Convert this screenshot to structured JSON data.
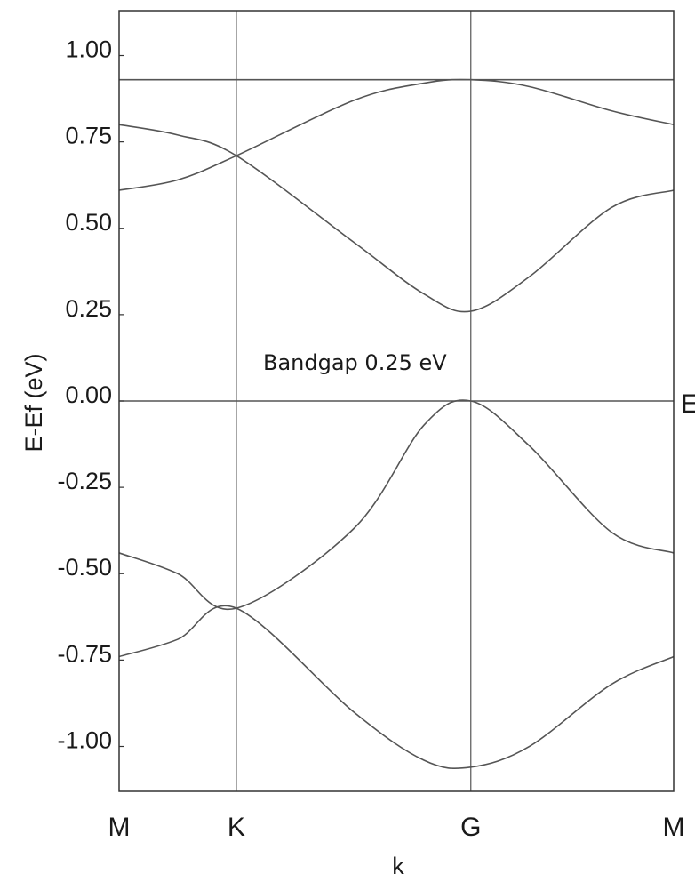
{
  "chart_data": {
    "type": "line",
    "title": "",
    "xlabel": "k",
    "ylabel": "E-Ef (eV)",
    "ylim": [
      -1.13,
      1.13
    ],
    "yticks": [
      {
        "value": 1.0,
        "label": "1.00"
      },
      {
        "value": 0.75,
        "label": "0.75"
      },
      {
        "value": 0.5,
        "label": "0.50"
      },
      {
        "value": 0.25,
        "label": "0.25"
      },
      {
        "value": 0.0,
        "label": "0.00"
      },
      {
        "value": -0.25,
        "label": "-0.25"
      },
      {
        "value": -0.5,
        "label": "-0.50"
      },
      {
        "value": -0.75,
        "label": "-0.75"
      },
      {
        "value": -1.0,
        "label": "-1.00"
      }
    ],
    "k_points": [
      {
        "label": "M",
        "x": 0.0
      },
      {
        "label": "K",
        "x": 1.0
      },
      {
        "label": "G",
        "x": 3.0
      },
      {
        "label": "M",
        "x": 4.73
      }
    ],
    "xlim": [
      0.0,
      4.73
    ],
    "fermi_label": "E",
    "annotation": "Bandgap 0.25 eV",
    "grid": false,
    "line_color": "#555555",
    "series": [
      {
        "x": [
          0,
          1.0,
          2.0,
          3.0,
          3.86,
          4.73
        ],
        "values": [
          0.93,
          0.93,
          0.93,
          0.93,
          0.93,
          0.93
        ]
      },
      {
        "x": [
          0,
          0.5,
          1.0,
          2.0,
          2.6,
          3.0,
          3.5,
          4.2,
          4.73
        ],
        "values": [
          0.8,
          0.77,
          0.71,
          0.46,
          0.31,
          0.26,
          0.36,
          0.56,
          0.61
        ]
      },
      {
        "x": [
          0,
          0.5,
          1.0,
          2.0,
          2.6,
          3.0,
          3.5,
          4.2,
          4.73
        ],
        "values": [
          0.61,
          0.64,
          0.71,
          0.87,
          0.92,
          0.93,
          0.91,
          0.84,
          0.8
        ]
      },
      {
        "x": [
          0,
          1.0,
          2.0,
          3.0,
          3.86,
          4.73
        ],
        "values": [
          0.0,
          0.0,
          0.0,
          0.0,
          0.0,
          0.0
        ]
      },
      {
        "x": [
          0,
          0.5,
          1.0,
          2.0,
          2.6,
          3.0,
          3.5,
          4.2,
          4.73
        ],
        "values": [
          -0.44,
          -0.5,
          -0.6,
          -0.37,
          -0.07,
          0.0,
          -0.13,
          -0.38,
          -0.44
        ]
      },
      {
        "x": [
          0,
          0.5,
          1.0,
          2.0,
          2.6,
          3.0,
          3.5,
          4.2,
          4.73
        ],
        "values": [
          -0.74,
          -0.69,
          -0.6,
          -0.9,
          -1.04,
          -1.06,
          -1.0,
          -0.82,
          -0.74
        ]
      }
    ]
  }
}
